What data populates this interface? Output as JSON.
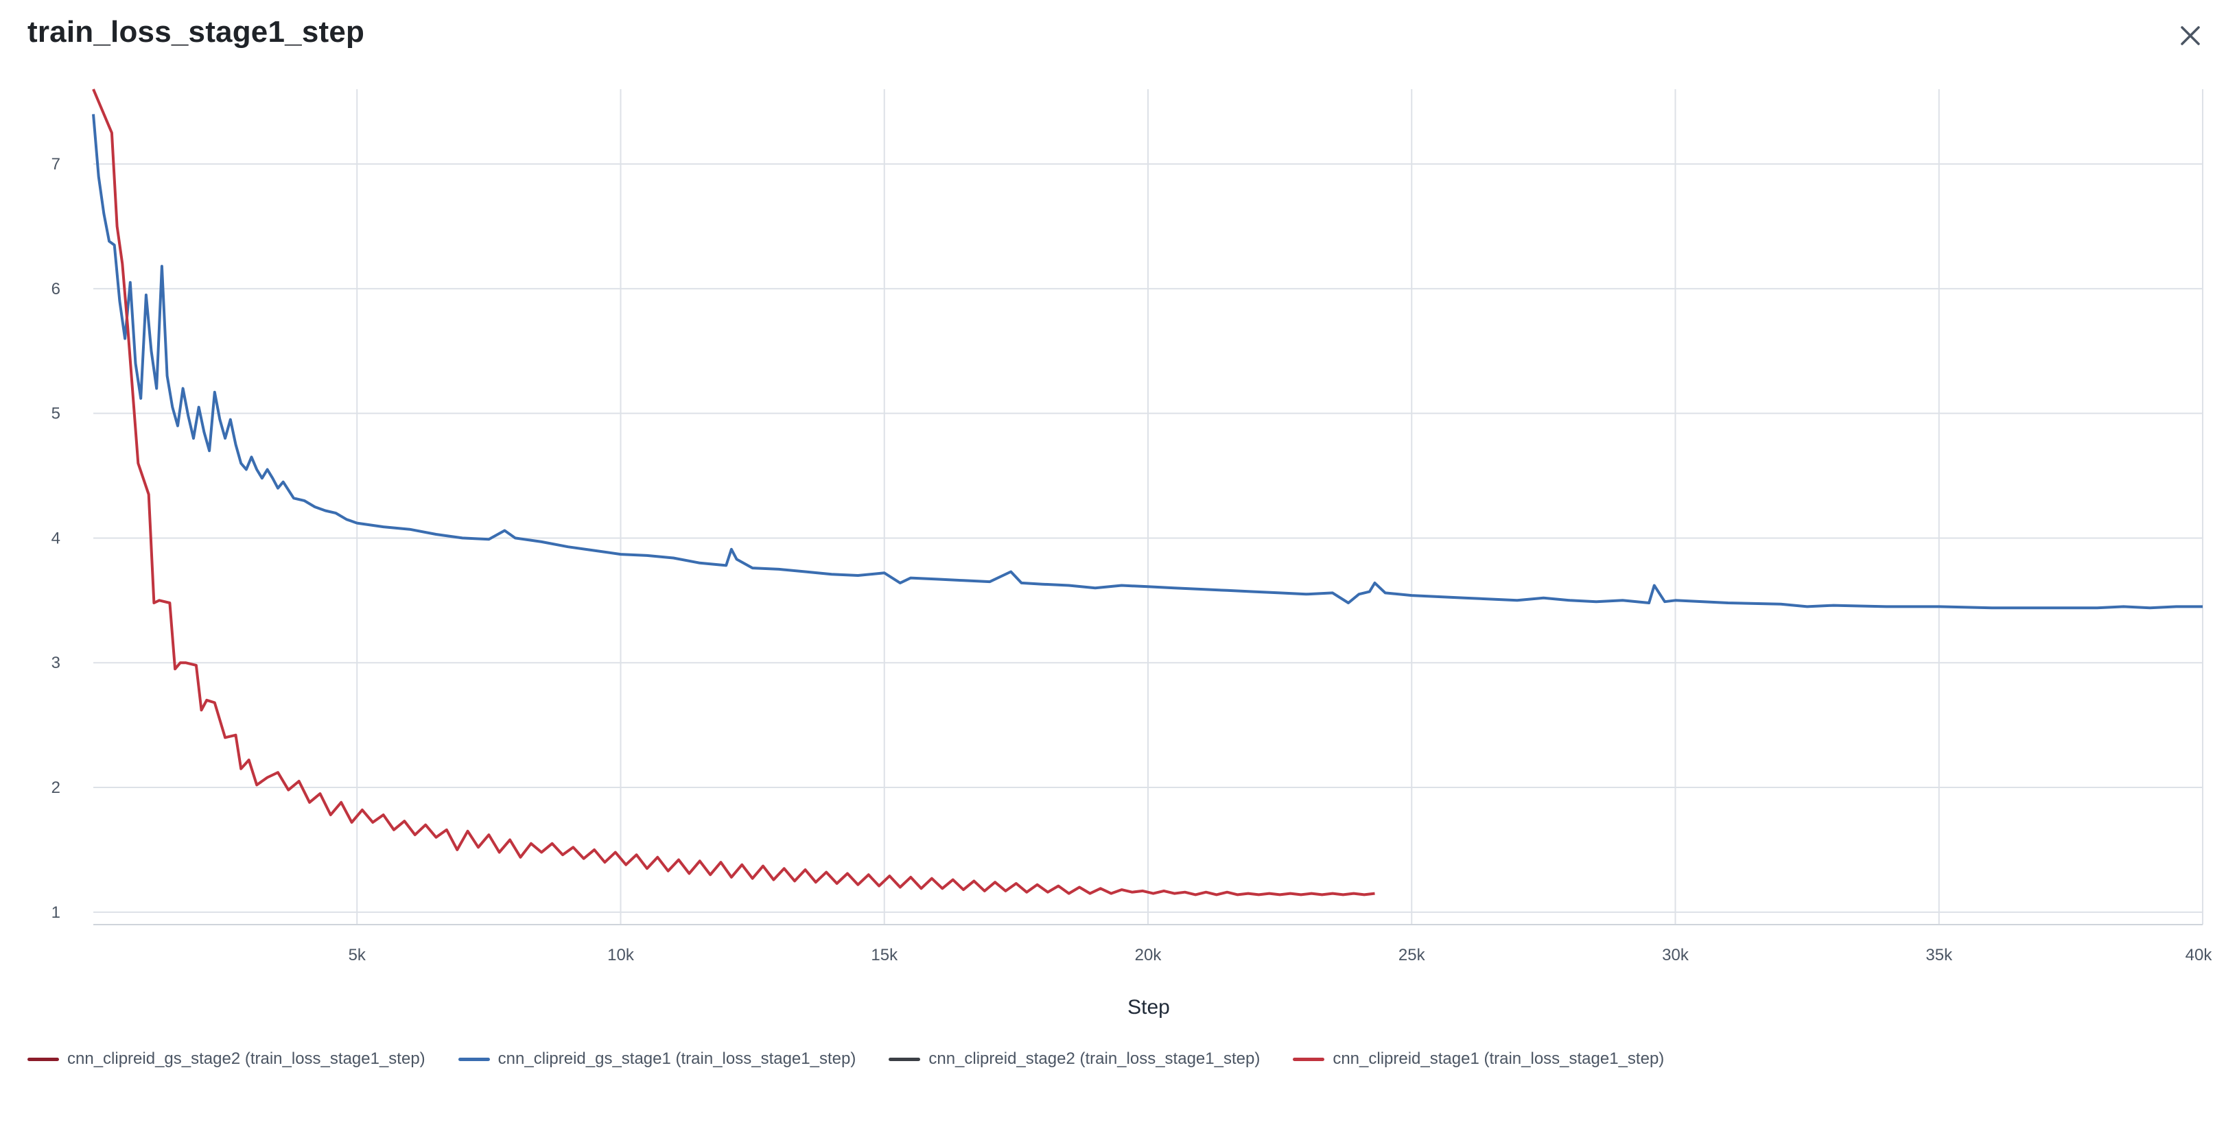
{
  "page": {
    "title": "train_loss_stage1_step",
    "close_icon": "close-icon"
  },
  "chart_data": {
    "type": "line",
    "title": "train_loss_stage1_step",
    "xlabel": "Step",
    "ylabel": "",
    "xlim": [
      0,
      40000
    ],
    "ylim": [
      0.9,
      7.6
    ],
    "x_ticks": [
      5000,
      10000,
      15000,
      20000,
      25000,
      30000,
      35000,
      40000
    ],
    "x_tick_labels": [
      "5k",
      "10k",
      "15k",
      "20k",
      "25k",
      "30k",
      "35k",
      "40k"
    ],
    "y_ticks": [
      1,
      2,
      3,
      4,
      5,
      6,
      7
    ],
    "y_tick_labels": [
      "1",
      "2",
      "3",
      "4",
      "5",
      "6",
      "7"
    ],
    "grid": true,
    "legend_position": "bottom-left",
    "series": [
      {
        "name": "cnn_clipreid_gs_stage2 (train_loss_stage1_step)",
        "color": "#8b1c2a",
        "x": [],
        "y": []
      },
      {
        "name": "cnn_clipreid_gs_stage1 (train_loss_stage1_step)",
        "color": "#3a6db0",
        "x": [
          0,
          100,
          200,
          300,
          400,
          500,
          600,
          700,
          800,
          900,
          1000,
          1100,
          1200,
          1300,
          1400,
          1500,
          1600,
          1700,
          1800,
          1900,
          2000,
          2100,
          2200,
          2300,
          2400,
          2500,
          2600,
          2700,
          2800,
          2900,
          3000,
          3100,
          3200,
          3300,
          3400,
          3500,
          3600,
          3800,
          4000,
          4200,
          4400,
          4600,
          4800,
          5000,
          5500,
          6000,
          6500,
          7000,
          7500,
          7800,
          8000,
          8500,
          9000,
          9500,
          10000,
          10500,
          11000,
          11500,
          12000,
          12100,
          12200,
          12500,
          13000,
          13500,
          14000,
          14500,
          15000,
          15300,
          15500,
          16000,
          16500,
          17000,
          17400,
          17600,
          18000,
          18500,
          19000,
          19500,
          20000,
          20500,
          21000,
          21500,
          22000,
          22500,
          23000,
          23500,
          23800,
          24000,
          24200,
          24300,
          24500,
          25000,
          26000,
          27000,
          27500,
          28000,
          28500,
          29000,
          29500,
          29600,
          29800,
          30000,
          31000,
          32000,
          32500,
          33000,
          34000,
          35000,
          36000,
          37000,
          38000,
          38500,
          39000,
          39500,
          40000
        ],
        "y": [
          7.4,
          6.9,
          6.6,
          6.38,
          6.35,
          5.9,
          5.6,
          6.05,
          5.4,
          5.12,
          5.95,
          5.5,
          5.2,
          6.18,
          5.3,
          5.05,
          4.9,
          5.2,
          4.98,
          4.8,
          5.05,
          4.85,
          4.7,
          5.17,
          4.95,
          4.8,
          4.95,
          4.75,
          4.6,
          4.55,
          4.65,
          4.55,
          4.48,
          4.55,
          4.48,
          4.4,
          4.45,
          4.32,
          4.3,
          4.25,
          4.22,
          4.2,
          4.15,
          4.12,
          4.09,
          4.07,
          4.03,
          4.0,
          3.99,
          4.06,
          4.0,
          3.97,
          3.93,
          3.9,
          3.87,
          3.86,
          3.84,
          3.8,
          3.78,
          3.91,
          3.83,
          3.76,
          3.75,
          3.73,
          3.71,
          3.7,
          3.72,
          3.64,
          3.68,
          3.67,
          3.66,
          3.65,
          3.73,
          3.64,
          3.63,
          3.62,
          3.6,
          3.62,
          3.61,
          3.6,
          3.59,
          3.58,
          3.57,
          3.56,
          3.55,
          3.56,
          3.48,
          3.55,
          3.57,
          3.64,
          3.56,
          3.54,
          3.52,
          3.5,
          3.52,
          3.5,
          3.49,
          3.5,
          3.48,
          3.62,
          3.49,
          3.5,
          3.48,
          3.47,
          3.45,
          3.46,
          3.45,
          3.45,
          3.44,
          3.44,
          3.44,
          3.45,
          3.44,
          3.45,
          3.45
        ]
      },
      {
        "name": "cnn_clipreid_stage2 (train_loss_stage1_step)",
        "color": "#3b3f45",
        "x": [],
        "y": []
      },
      {
        "name": "cnn_clipreid_stage1 (train_loss_stage1_step)",
        "color": "#c0343f",
        "x": [
          0,
          350,
          450,
          550,
          650,
          850,
          1050,
          1150,
          1250,
          1450,
          1550,
          1650,
          1750,
          1950,
          2050,
          2150,
          2300,
          2500,
          2700,
          2800,
          2950,
          3100,
          3300,
          3500,
          3700,
          3900,
          4100,
          4300,
          4500,
          4700,
          4900,
          5100,
          5300,
          5500,
          5700,
          5900,
          6100,
          6300,
          6500,
          6700,
          6900,
          7100,
          7300,
          7500,
          7700,
          7900,
          8100,
          8300,
          8500,
          8700,
          8900,
          9100,
          9300,
          9500,
          9700,
          9900,
          10100,
          10300,
          10500,
          10700,
          10900,
          11100,
          11300,
          11500,
          11700,
          11900,
          12100,
          12300,
          12500,
          12700,
          12900,
          13100,
          13300,
          13500,
          13700,
          13900,
          14100,
          14300,
          14500,
          14700,
          14900,
          15100,
          15300,
          15500,
          15700,
          15900,
          16100,
          16300,
          16500,
          16700,
          16900,
          17100,
          17300,
          17500,
          17700,
          17900,
          18100,
          18300,
          18500,
          18700,
          18900,
          19100,
          19300,
          19500,
          19700,
          19900,
          20100,
          20300,
          20500,
          20700,
          20900,
          21100,
          21300,
          21500,
          21700,
          21900,
          22100,
          22300,
          22500,
          22700,
          22900,
          23100,
          23300,
          23500,
          23700,
          23900,
          24100,
          24300
        ],
        "y": [
          7.6,
          7.25,
          6.5,
          6.2,
          5.7,
          4.6,
          4.35,
          3.48,
          3.5,
          3.48,
          2.95,
          3.0,
          3.0,
          2.98,
          2.62,
          2.7,
          2.68,
          2.4,
          2.42,
          2.15,
          2.22,
          2.02,
          2.08,
          2.12,
          1.98,
          2.05,
          1.88,
          1.95,
          1.78,
          1.88,
          1.72,
          1.82,
          1.72,
          1.78,
          1.66,
          1.73,
          1.62,
          1.7,
          1.6,
          1.66,
          1.5,
          1.65,
          1.52,
          1.62,
          1.48,
          1.58,
          1.44,
          1.55,
          1.48,
          1.55,
          1.46,
          1.52,
          1.43,
          1.5,
          1.4,
          1.48,
          1.38,
          1.46,
          1.35,
          1.44,
          1.33,
          1.42,
          1.31,
          1.41,
          1.3,
          1.4,
          1.28,
          1.38,
          1.27,
          1.37,
          1.26,
          1.35,
          1.25,
          1.34,
          1.24,
          1.32,
          1.23,
          1.31,
          1.22,
          1.3,
          1.21,
          1.29,
          1.2,
          1.28,
          1.19,
          1.27,
          1.19,
          1.26,
          1.18,
          1.25,
          1.17,
          1.24,
          1.17,
          1.23,
          1.16,
          1.22,
          1.16,
          1.21,
          1.15,
          1.2,
          1.15,
          1.19,
          1.15,
          1.18,
          1.16,
          1.17,
          1.15,
          1.17,
          1.15,
          1.16,
          1.14,
          1.16,
          1.14,
          1.16,
          1.14,
          1.15,
          1.14,
          1.15,
          1.14,
          1.15,
          1.14,
          1.15,
          1.14,
          1.15,
          1.14,
          1.15,
          1.14,
          1.15
        ]
      }
    ]
  }
}
